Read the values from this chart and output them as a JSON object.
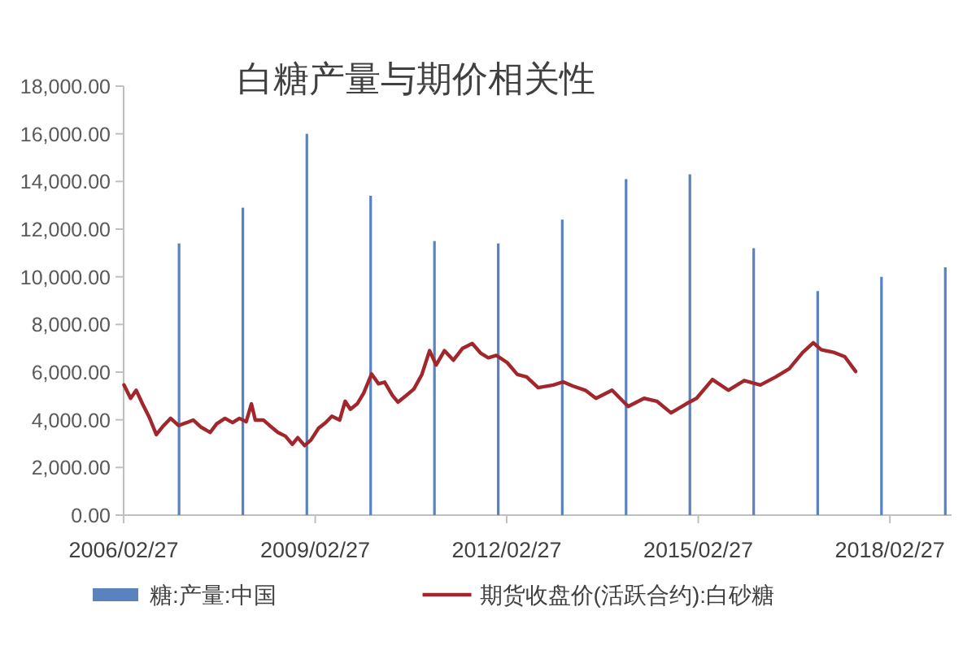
{
  "chart_data": {
    "type": "bar",
    "title": "白糖产量与期价相关性",
    "series": [
      {
        "name": "糖:产量:中国",
        "color": "#5a82be",
        "x": [
          "2007-01-10",
          "2008-01-10",
          "2009-01-10",
          "2010-01-10",
          "2011-01-10",
          "2012-01-10",
          "2013-01-10",
          "2014-01-10",
          "2015-01-10",
          "2016-01-10",
          "2017-01-10",
          "2018-01-10",
          "2019-01-10"
        ],
        "values": [
          11400,
          12900,
          16000,
          13400,
          11500,
          11400,
          12400,
          14100,
          14300,
          11200,
          9400,
          10000,
          10400
        ]
      },
      {
        "name": "期货收盘价(活跃合约):白砂糖",
        "type": "line",
        "color": "#a2272c",
        "x": [
          "2006-03-01",
          "2006-04-08",
          "2006-05-10",
          "2006-06-15",
          "2006-07-24",
          "2006-09-02",
          "2006-10-14",
          "2006-11-23",
          "2007-01-07",
          "2007-02-22",
          "2007-04-01",
          "2007-05-16",
          "2007-07-07",
          "2007-08-13",
          "2007-09-30",
          "2007-11-12",
          "2007-12-21",
          "2008-01-29",
          "2008-02-28",
          "2008-03-21",
          "2008-05-06",
          "2008-06-11",
          "2008-07-29",
          "2008-09-10",
          "2008-10-19",
          "2008-11-19",
          "2008-12-28",
          "2009-02-02",
          "2009-03-18",
          "2009-04-27",
          "2009-06-02",
          "2009-07-17",
          "2009-08-17",
          "2009-09-16",
          "2009-10-25",
          "2009-12-01",
          "2010-01-15",
          "2010-02-24",
          "2010-03-31",
          "2010-05-16",
          "2010-06-15",
          "2010-07-31",
          "2010-09-14",
          "2010-10-30",
          "2010-12-13",
          "2011-01-20",
          "2011-03-08",
          "2011-04-28",
          "2011-06-20",
          "2011-08-14",
          "2011-10-01",
          "2011-11-14",
          "2011-12-30",
          "2012-03-01",
          "2012-04-28",
          "2012-06-20",
          "2012-08-25",
          "2012-11-20",
          "2013-01-15",
          "2013-03-10",
          "2013-05-22",
          "2013-07-22",
          "2013-10-22",
          "2014-01-22",
          "2014-04-23",
          "2014-07-05",
          "2014-09-24",
          "2014-12-20",
          "2015-02-17",
          "2015-05-19",
          "2015-08-18",
          "2015-11-17",
          "2016-02-17",
          "2016-05-15",
          "2016-07-31",
          "2016-10-16",
          "2016-12-16",
          "2017-01-30",
          "2017-04-16",
          "2017-06-14",
          "2017-08-15"
        ],
        "values": [
          5460,
          4900,
          5240,
          4670,
          4100,
          3380,
          3760,
          4060,
          3760,
          3880,
          3990,
          3690,
          3470,
          3830,
          4060,
          3880,
          4060,
          3920,
          4670,
          3990,
          3990,
          3760,
          3470,
          3310,
          2970,
          3250,
          2920,
          3150,
          3650,
          3880,
          4150,
          3990,
          4780,
          4440,
          4670,
          5120,
          5920,
          5510,
          5580,
          5010,
          4740,
          5010,
          5290,
          5900,
          6900,
          6300,
          6900,
          6500,
          7000,
          7200,
          6800,
          6600,
          6700,
          6400,
          5900,
          5800,
          5350,
          5460,
          5590,
          5420,
          5240,
          4900,
          5240,
          4560,
          4900,
          4780,
          4290,
          4670,
          4900,
          5690,
          5240,
          5650,
          5460,
          5800,
          6140,
          6820,
          7230,
          6940,
          6820,
          6650,
          6030
        ]
      }
    ],
    "xlim": [
      "2006-02-27",
      "2019-02-15"
    ],
    "xticks": [
      {
        "value": "2006-02-27",
        "label": "2006/02/27"
      },
      {
        "value": "2009-02-27",
        "label": "2009/02/27"
      },
      {
        "value": "2012-02-27",
        "label": "2012/02/27"
      },
      {
        "value": "2015-02-27",
        "label": "2015/02/27"
      },
      {
        "value": "2018-02-27",
        "label": "2018/02/27"
      }
    ],
    "ylim": [
      0,
      18000
    ],
    "yticks": [
      {
        "value": 0,
        "label": "0.00"
      },
      {
        "value": 2000,
        "label": "2,000.00"
      },
      {
        "value": 4000,
        "label": "4,000.00"
      },
      {
        "value": 6000,
        "label": "6,000.00"
      },
      {
        "value": 8000,
        "label": "8,000.00"
      },
      {
        "value": 10000,
        "label": "10,000.00"
      },
      {
        "value": 12000,
        "label": "12,000.00"
      },
      {
        "value": 14000,
        "label": "14,000.00"
      },
      {
        "value": 16000,
        "label": "16,000.00"
      },
      {
        "value": 18000,
        "label": "18,000.00"
      }
    ],
    "legend": "bottom"
  }
}
